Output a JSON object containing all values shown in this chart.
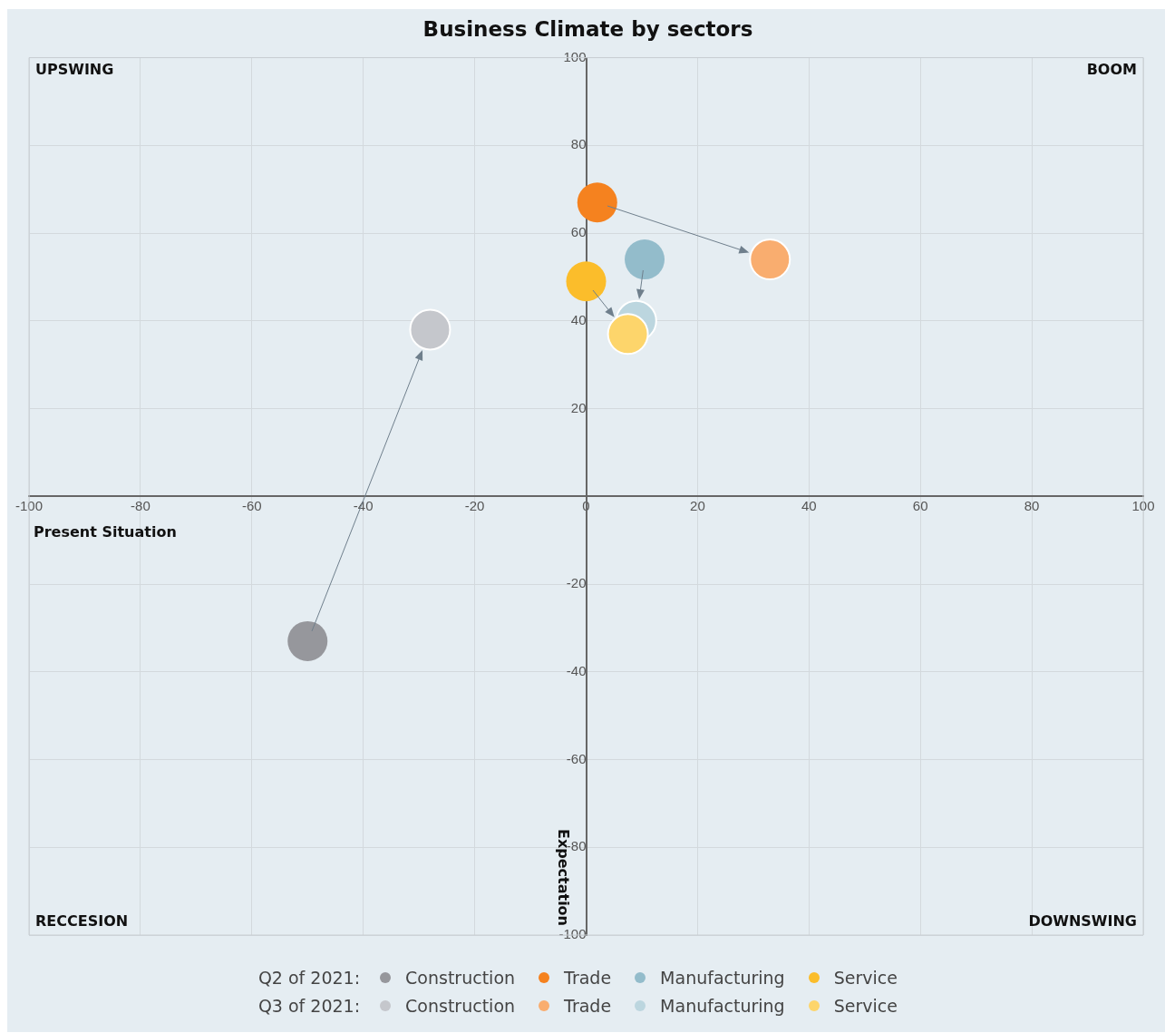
{
  "chart_data": {
    "type": "scatter",
    "title": "Business Climate by sectors",
    "xlabel": "Present Situation",
    "ylabel": "Expectation",
    "annotations": [
      "UPSWING",
      "BOOM",
      "RECCESION",
      "DOWNSWING",
      "Q2 of 2021:",
      "Q3 of 2021:"
    ],
    "xlim": [
      -100,
      100
    ],
    "ylim": [
      -100,
      100
    ],
    "xticks": [
      -100,
      -80,
      -60,
      -40,
      -20,
      0,
      20,
      40,
      60,
      80,
      100
    ],
    "yticks": [
      -100,
      -80,
      -60,
      -40,
      -20,
      {
        "value": 0,
        "label": null
      },
      20,
      40,
      60,
      80,
      100
    ],
    "grid": true,
    "legend": "bottom",
    "marker": "circle",
    "series": [
      {
        "name": "Construction",
        "color": "#96979c",
        "x": [
          -50
        ],
        "values": [
          -33
        ]
      },
      {
        "name": "Trade",
        "color": "#f5821f",
        "x": [
          2
        ],
        "values": [
          67
        ]
      },
      {
        "name": "Manufacturing",
        "color": "#93bccb",
        "x": [
          10.5
        ],
        "values": [
          54
        ]
      },
      {
        "name": "Service",
        "color": "#fbbd2b",
        "x": [
          0
        ],
        "values": [
          49
        ]
      },
      {
        "name": "Construction",
        "color": "#c5c7cc",
        "x": [
          -28
        ],
        "values": [
          38
        ]
      },
      {
        "name": "Trade",
        "color": "#f9ad6f",
        "x": [
          33
        ],
        "values": [
          54
        ]
      },
      {
        "name": "Manufacturing",
        "color": "#bcd6df",
        "x": [
          9
        ],
        "values": [
          40
        ]
      },
      {
        "name": "Service",
        "color": "#fdd56b",
        "x": [
          7.5
        ],
        "values": [
          37
        ]
      }
    ]
  }
}
